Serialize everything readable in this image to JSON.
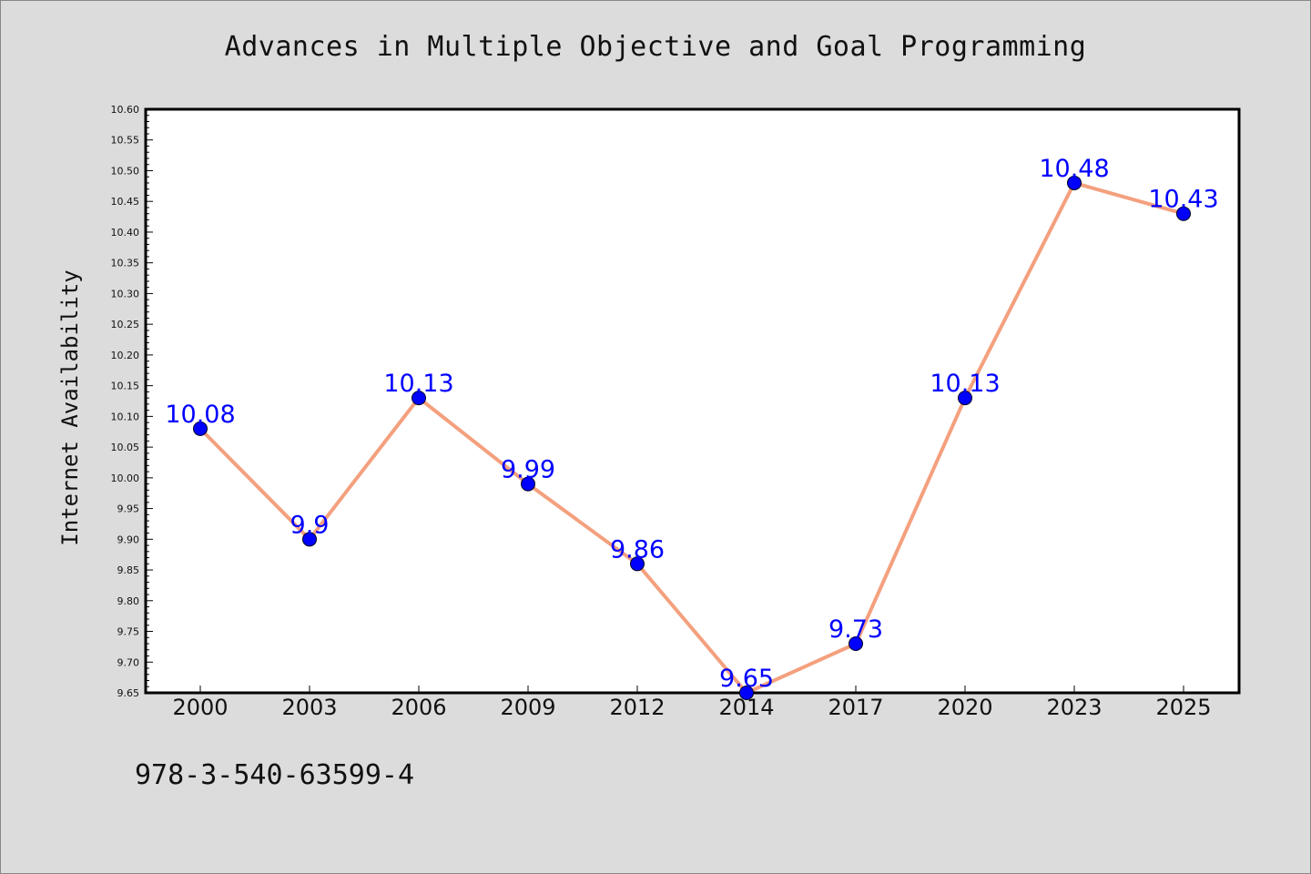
{
  "page": {
    "title": "Advances in Multiple Objective and Goal Programming",
    "footer": "978-3-540-63599-4"
  },
  "colors": {
    "background": "#dcdcdc",
    "line": "#f4a07e",
    "marker": "#0000ff",
    "label": "#0000ff"
  },
  "chart_data": {
    "type": "line",
    "title": "Advances in Multiple Objective and Goal Programming",
    "xlabel": "",
    "ylabel": "Internet Availability",
    "categories": [
      "2000",
      "2003",
      "2006",
      "2009",
      "2012",
      "2014",
      "2017",
      "2020",
      "2023",
      "2025"
    ],
    "series": [
      {
        "values": [
          10.08,
          9.9,
          10.13,
          9.99,
          9.86,
          9.65,
          9.73,
          10.13,
          10.48,
          10.43
        ]
      }
    ],
    "data_labels": [
      "10.08",
      "9.9",
      "10.13",
      "9.99",
      "9.86",
      "9.65",
      "9.73",
      "10.13",
      "10.48",
      "10.43"
    ],
    "ylim": [
      9.65,
      10.6
    ],
    "yticks": [
      "9.65",
      "9.70",
      "9.75",
      "9.80",
      "9.85",
      "9.90",
      "9.95",
      "10.00",
      "10.05",
      "10.10",
      "10.15",
      "10.20",
      "10.25",
      "10.30",
      "10.35",
      "10.40",
      "10.45",
      "10.50",
      "10.55",
      "10.60"
    ],
    "grid": false,
    "legend": "none"
  }
}
